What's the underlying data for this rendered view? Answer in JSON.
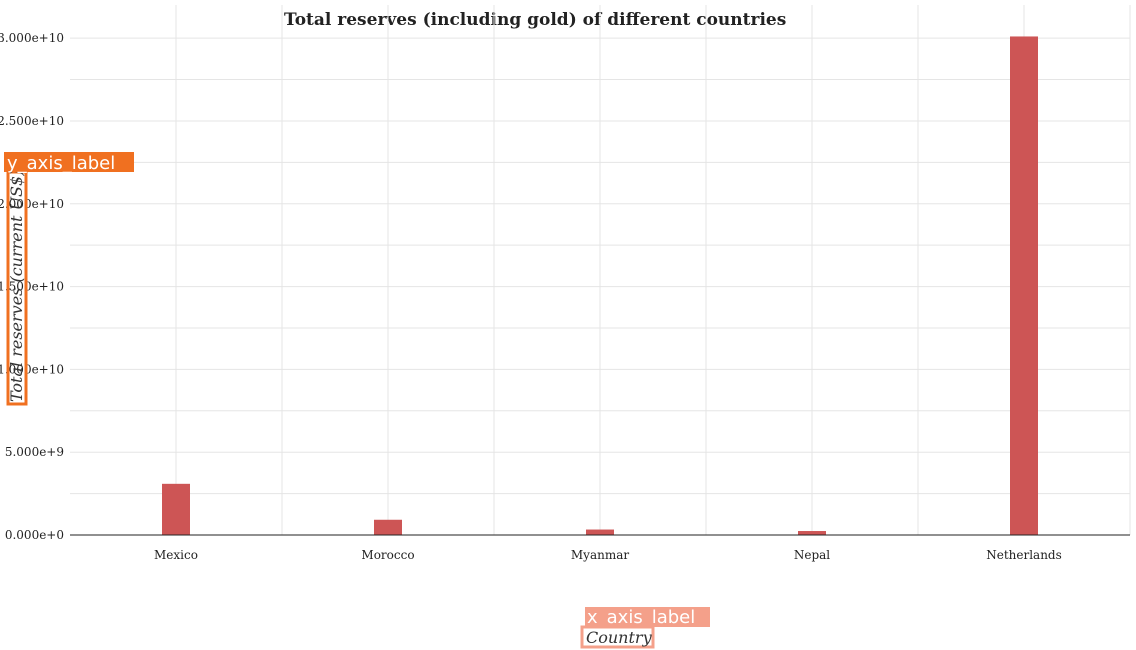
{
  "chart_data": {
    "type": "bar",
    "title": "Total reserves (including gold) of different countries",
    "xlabel": "Country",
    "ylabel": "Total reserves (current US$)",
    "categories": [
      "Mexico",
      "Morocco",
      "Myanmar",
      "Nepal",
      "Netherlands"
    ],
    "values": [
      3090000000,
      920000000,
      330000000,
      240000000,
      30100000000
    ],
    "yticks": [
      0,
      5000000000,
      10000000000,
      15000000000,
      20000000000,
      25000000000,
      30000000000
    ],
    "ytick_labels": [
      "0.000e+0",
      "5.000e+9",
      "1.000e+10",
      "1.500e+10",
      "2.000e+10",
      "2.500e+10",
      "3.000e+10"
    ],
    "ylim": [
      0,
      32000000000
    ],
    "grid": true,
    "colors": {
      "bar": "#cd5555",
      "tag": "#f07020",
      "tag_light": "#f4a08a"
    }
  },
  "annotations": {
    "y_tag": "y_axis_label",
    "x_tag": "x_axis_label"
  }
}
